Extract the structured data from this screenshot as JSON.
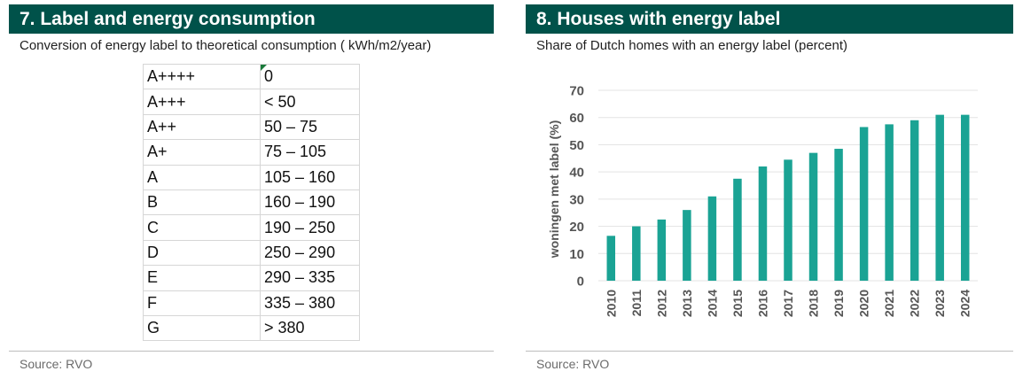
{
  "left_panel": {
    "title": "7. Label and energy consumption",
    "subtitle": "Conversion of energy label to theoretical consumption ( kWh/m2/year)",
    "rows": [
      {
        "label": "A++++",
        "value": "0"
      },
      {
        "label": "A+++",
        "value": "< 50"
      },
      {
        "label": "A++",
        "value": "50 – 75"
      },
      {
        "label": "A+",
        "value": "75 – 105"
      },
      {
        "label": "A",
        "value": "105 – 160"
      },
      {
        "label": "B",
        "value": "160 – 190"
      },
      {
        "label": "C",
        "value": "190 – 250"
      },
      {
        "label": "D",
        "value": "250 – 290"
      },
      {
        "label": "E",
        "value": "290 – 335"
      },
      {
        "label": "F",
        "value": "335 – 380"
      },
      {
        "label": "G",
        "value": "> 380"
      }
    ],
    "source": "Source: RVO"
  },
  "right_panel": {
    "title": "8. Houses with energy label",
    "subtitle": "Share of Dutch homes with an energy label (percent)",
    "source": "Source: RVO"
  },
  "chart_data": {
    "type": "bar",
    "categories": [
      "2010",
      "2011",
      "2012",
      "2013",
      "2014",
      "2015",
      "2016",
      "2017",
      "2018",
      "2019",
      "2020",
      "2021",
      "2022",
      "2023",
      "2024"
    ],
    "values": [
      16.5,
      20,
      22.5,
      26,
      31,
      37.5,
      42,
      44.5,
      47,
      48.5,
      56.5,
      57.5,
      59,
      61,
      61
    ],
    "title": "8. Houses with energy label",
    "subtitle": "Share of Dutch homes with an energy label (percent)",
    "xlabel": "",
    "ylabel": "woningen met label (%)",
    "ylim": [
      0,
      70
    ],
    "yticks": [
      0,
      10,
      20,
      30,
      40,
      50,
      60,
      70
    ],
    "grid": true,
    "legend": "none",
    "bar_color": "#1aa394",
    "grid_color": "#e3e3e3"
  }
}
